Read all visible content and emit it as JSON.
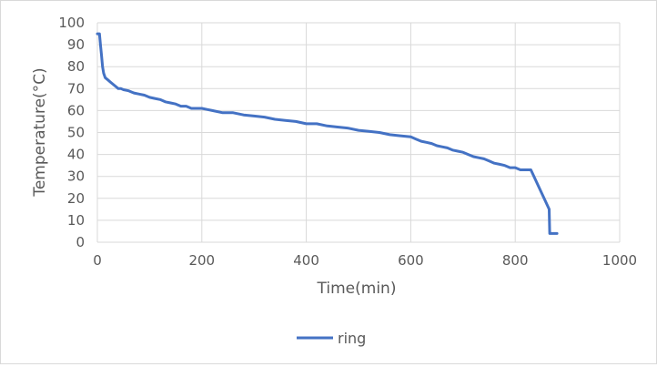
{
  "chart_data": {
    "type": "line",
    "title": "",
    "xlabel": "Time(min)",
    "ylabel": "Temperature(°C)",
    "xlim": [
      0,
      1000
    ],
    "ylim": [
      0,
      100
    ],
    "xticks": [
      0,
      200,
      400,
      600,
      800,
      1000
    ],
    "yticks": [
      0,
      10,
      20,
      30,
      40,
      50,
      60,
      70,
      80,
      90,
      100
    ],
    "grid": true,
    "legend_position": "bottom",
    "series": [
      {
        "name": "ring",
        "color": "#4472c4",
        "x": [
          0,
          4,
          6,
          8,
          10,
          12,
          15,
          20,
          25,
          30,
          35,
          40,
          45,
          50,
          60,
          70,
          80,
          90,
          100,
          110,
          120,
          130,
          140,
          150,
          160,
          170,
          180,
          190,
          200,
          210,
          220,
          240,
          260,
          280,
          300,
          320,
          340,
          360,
          380,
          400,
          420,
          440,
          460,
          480,
          500,
          520,
          540,
          560,
          580,
          600,
          610,
          620,
          630,
          640,
          650,
          660,
          670,
          680,
          690,
          700,
          710,
          720,
          730,
          740,
          750,
          760,
          770,
          780,
          790,
          800,
          810,
          820,
          830,
          865,
          866,
          880
        ],
        "y": [
          95,
          95,
          90,
          85,
          80,
          77,
          75,
          74,
          73,
          72,
          71,
          70,
          70,
          69.5,
          69,
          68,
          67.5,
          67,
          66,
          65.5,
          65,
          64,
          63.5,
          63,
          62,
          62,
          61,
          61,
          61,
          60.5,
          60,
          59,
          59,
          58,
          57.5,
          57,
          56,
          55.5,
          55,
          54,
          54,
          53,
          52.5,
          52,
          51,
          50.5,
          50,
          49,
          48.5,
          48,
          47,
          46,
          45.5,
          45,
          44,
          43.5,
          43,
          42,
          41.5,
          41,
          40,
          39,
          38.5,
          38,
          37,
          36,
          35.5,
          35,
          34,
          34,
          33,
          33,
          33,
          15,
          4,
          4
        ]
      }
    ]
  }
}
